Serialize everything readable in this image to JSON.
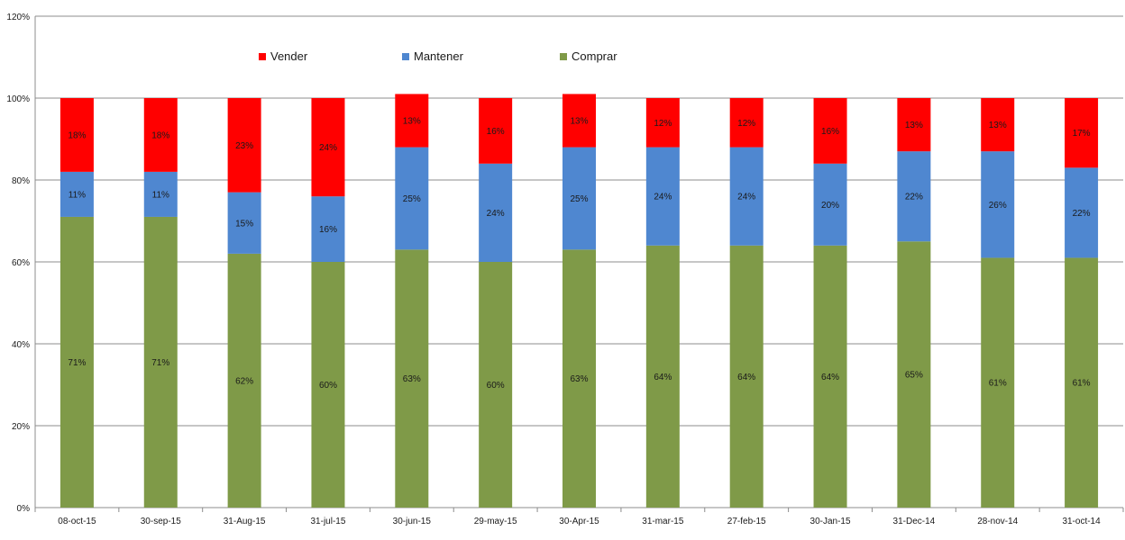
{
  "chart_data": {
    "type": "bar",
    "stacked": true,
    "categories": [
      "08-oct-15",
      "30-sep-15",
      "31-Aug-15",
      "31-jul-15",
      "30-jun-15",
      "29-may-15",
      "30-Apr-15",
      "31-mar-15",
      "27-feb-15",
      "30-Jan-15",
      "31-Dec-14",
      "28-nov-14",
      "31-oct-14"
    ],
    "series": [
      {
        "name": "Comprar",
        "color": "#7f9a48",
        "values": [
          71,
          71,
          62,
          60,
          63,
          60,
          63,
          64,
          64,
          64,
          65,
          61,
          61
        ]
      },
      {
        "name": "Mantener",
        "color": "#4f87d0",
        "values": [
          11,
          11,
          15,
          16,
          25,
          24,
          25,
          24,
          24,
          20,
          22,
          26,
          22
        ]
      },
      {
        "name": "Vender",
        "color": "#ff0000",
        "values": [
          18,
          18,
          23,
          24,
          13,
          16,
          13,
          12,
          12,
          16,
          13,
          13,
          17
        ]
      }
    ],
    "legend_order": [
      "Vender",
      "Mantener",
      "Comprar"
    ],
    "ylim": [
      0,
      120
    ],
    "yticks": [
      0,
      20,
      40,
      60,
      80,
      100,
      120
    ],
    "ytick_labels": [
      "0%",
      "20%",
      "40%",
      "60%",
      "80%",
      "100%",
      "120%"
    ],
    "value_suffix": "%",
    "grid": true,
    "legend_position": "top"
  }
}
